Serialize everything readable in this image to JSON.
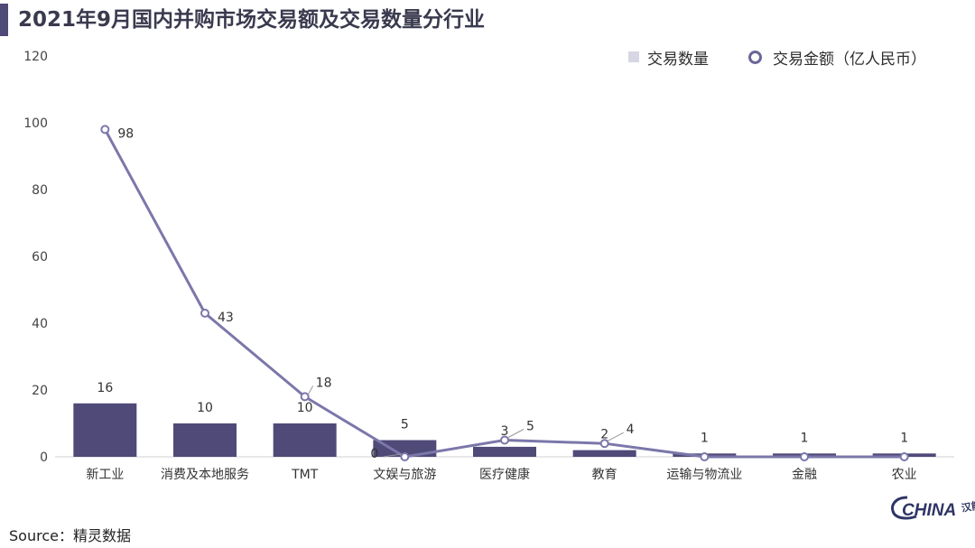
{
  "title": "2021年9月国内并购市场交易额及交易数量分行业",
  "legend": {
    "bar_label": "交易数量",
    "line_label": "交易金额（亿人民币）"
  },
  "source": "Source：精灵数据",
  "logo": {
    "main": "CHINA",
    "mark": "汉能"
  },
  "colors": {
    "accent": "#4f4a78",
    "bar": "#4f4a78",
    "line": "#7b77aa",
    "legend_bar": "#d7d6e4"
  },
  "chart_data": {
    "type": "bar+line",
    "title": "2021年9月国内并购市场交易额及交易数量分行业",
    "categories": [
      "新工业",
      "消费及本地服务",
      "TMT",
      "文娱与旅游",
      "医疗健康",
      "教育",
      "运输与物流业",
      "金融",
      "农业"
    ],
    "series": [
      {
        "name": "交易数量",
        "type": "bar",
        "values": [
          16,
          10,
          10,
          5,
          3,
          2,
          1,
          1,
          1
        ]
      },
      {
        "name": "交易金额（亿人民币）",
        "type": "line",
        "values": [
          98,
          43,
          18,
          0,
          5,
          4,
          0,
          0,
          0
        ],
        "labels": [
          "98",
          "43",
          "18",
          "0",
          "5",
          "4",
          "",
          "",
          ""
        ]
      }
    ],
    "ylim": [
      0,
      120
    ],
    "yticks": [
      0,
      20,
      40,
      60,
      80,
      100,
      120
    ],
    "grid": false,
    "legend_position": "top-right"
  }
}
